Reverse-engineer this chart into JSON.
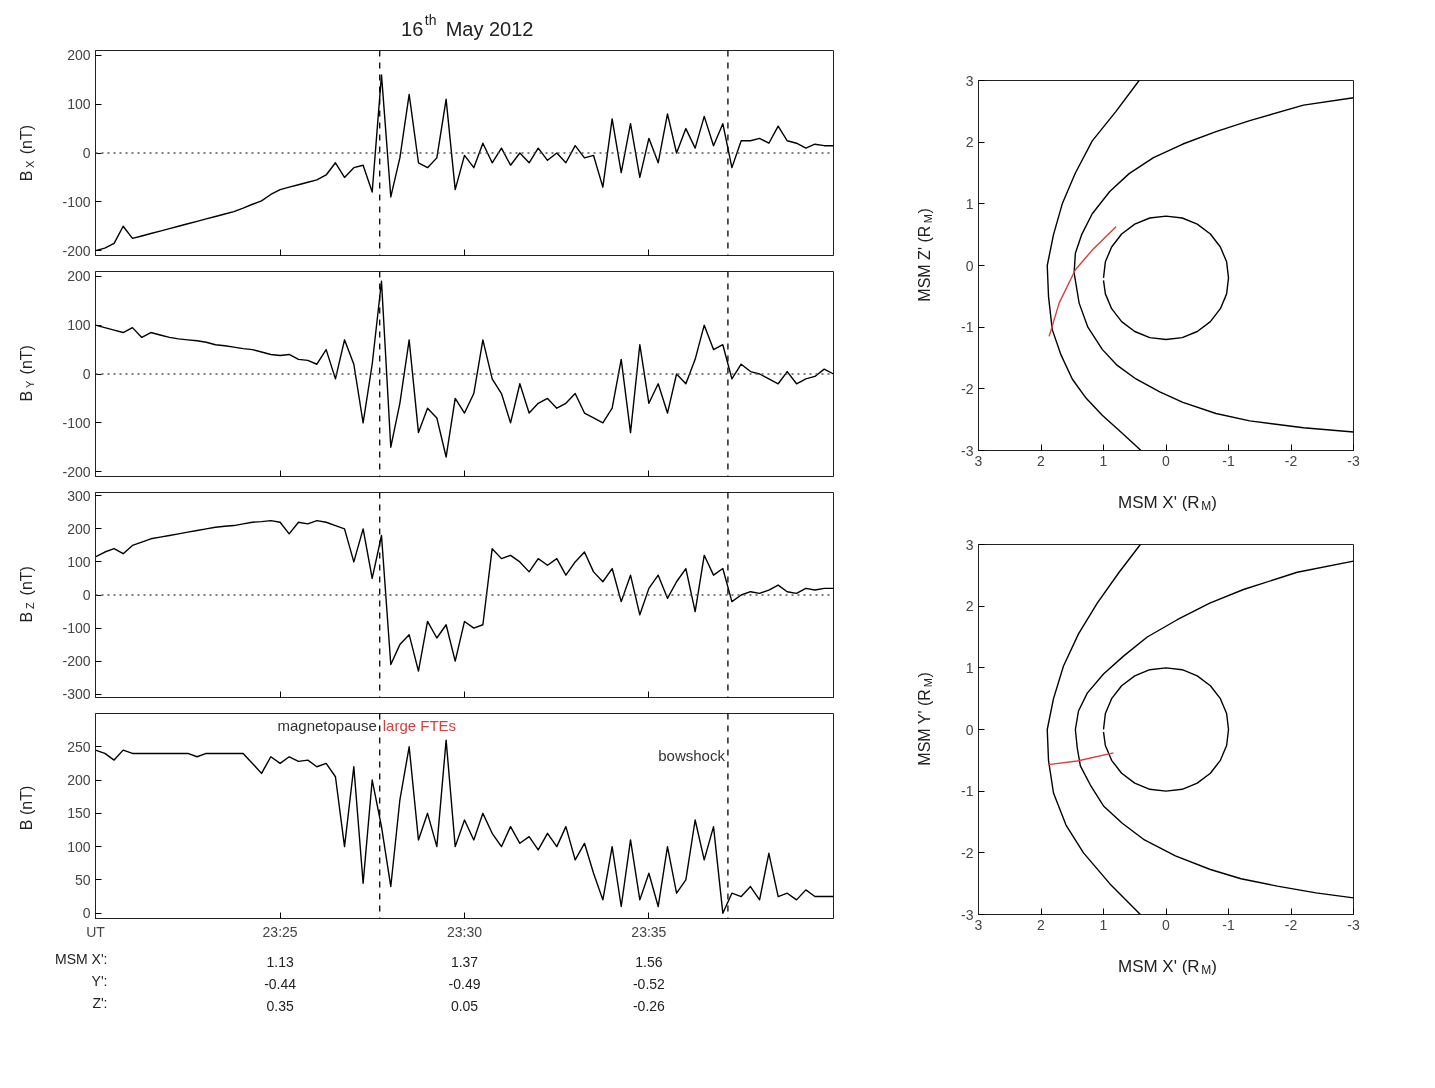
{
  "chart_data": [
    {
      "type": "line",
      "title": "16$^{th}$ May 2012",
      "ylabel": "B$_{X}$ (nT)",
      "x": [
        23.3333,
        23.3375,
        23.3417,
        23.3458,
        23.35,
        23.3542,
        23.3583,
        23.3625,
        23.3667,
        23.3708,
        23.375,
        23.3792,
        23.3833,
        23.3875,
        23.3917,
        23.3958,
        23.4,
        23.4042,
        23.4083,
        23.4125,
        23.4167,
        23.4208,
        23.425,
        23.4292,
        23.4333,
        23.4375,
        23.4417,
        23.4458,
        23.45,
        23.4542,
        23.4583,
        23.4625,
        23.4667,
        23.4708,
        23.475,
        23.4792,
        23.4833,
        23.4875,
        23.4917,
        23.4958,
        23.5,
        23.5042,
        23.5083,
        23.5125,
        23.5167,
        23.5208,
        23.525,
        23.5292,
        23.5333,
        23.5375,
        23.5417,
        23.5458,
        23.55,
        23.5542,
        23.5583,
        23.5625,
        23.5667,
        23.5708,
        23.575,
        23.5792,
        23.5833,
        23.5875,
        23.5917,
        23.5958,
        23.6,
        23.6042,
        23.6083,
        23.6125,
        23.6167,
        23.6208,
        23.625,
        23.6292,
        23.6333,
        23.6375,
        23.6417,
        23.6458,
        23.65,
        23.6542,
        23.6583,
        23.6625,
        23.6667
      ],
      "series": [
        {
          "color": "#000000",
          "values": [
            -200,
            -195,
            -185,
            -150,
            -175,
            -170,
            -165,
            -160,
            -155,
            -150,
            -145,
            -140,
            -135,
            -130,
            -125,
            -120,
            -113,
            -105,
            -98,
            -85,
            -75,
            -70,
            -65,
            -60,
            -55,
            -45,
            -20,
            -50,
            -30,
            -25,
            -80,
            160,
            -90,
            -10,
            120,
            -20,
            -30,
            -10,
            110,
            -75,
            -5,
            -30,
            20,
            -20,
            10,
            -25,
            0,
            -20,
            10,
            -15,
            0,
            -20,
            15,
            -10,
            -5,
            -70,
            70,
            -40,
            60,
            -50,
            30,
            -20,
            80,
            0,
            50,
            10,
            75,
            15,
            60,
            -30,
            25,
            25,
            30,
            20,
            55,
            25,
            20,
            10,
            18,
            15,
            15
          ]
        }
      ],
      "xlim": [
        23.3333,
        23.6667
      ],
      "ylim": [
        -210,
        210
      ],
      "xticks": [
        23.4167,
        23.5,
        23.5833
      ],
      "tick_labels": "y",
      "yticks": [
        -200,
        -100,
        0,
        100,
        200
      ],
      "ref_lines": [
        {
          "axis": "y",
          "value": 0,
          "line_style": "dotted",
          "color": "#555555"
        },
        {
          "axis": "x",
          "value": 23.4617,
          "line_style": "dashed",
          "color": "#000000"
        },
        {
          "axis": "x",
          "value": 23.619,
          "line_style": "dashed",
          "color": "#000000"
        }
      ]
    },
    {
      "type": "line",
      "ylabel": "B$_{Y}$ (nT)",
      "x": [
        23.3333,
        23.3375,
        23.3417,
        23.3458,
        23.35,
        23.3542,
        23.3583,
        23.3625,
        23.3667,
        23.3708,
        23.375,
        23.3792,
        23.3833,
        23.3875,
        23.3917,
        23.3958,
        23.4,
        23.4042,
        23.4083,
        23.4125,
        23.4167,
        23.4208,
        23.425,
        23.4292,
        23.4333,
        23.4375,
        23.4417,
        23.4458,
        23.45,
        23.4542,
        23.4583,
        23.4625,
        23.4667,
        23.4708,
        23.475,
        23.4792,
        23.4833,
        23.4875,
        23.4917,
        23.4958,
        23.5,
        23.5042,
        23.5083,
        23.5125,
        23.5167,
        23.5208,
        23.525,
        23.5292,
        23.5333,
        23.5375,
        23.5417,
        23.5458,
        23.55,
        23.5542,
        23.5583,
        23.5625,
        23.5667,
        23.5708,
        23.575,
        23.5792,
        23.5833,
        23.5875,
        23.5917,
        23.5958,
        23.6,
        23.6042,
        23.6083,
        23.6125,
        23.6167,
        23.6208,
        23.625,
        23.6292,
        23.6333,
        23.6375,
        23.6417,
        23.6458,
        23.65,
        23.6542,
        23.6583,
        23.6625,
        23.6667
      ],
      "series": [
        {
          "color": "#000000",
          "values": [
            100,
            95,
            90,
            85,
            95,
            75,
            85,
            80,
            75,
            72,
            70,
            68,
            65,
            60,
            58,
            55,
            52,
            50,
            45,
            40,
            38,
            40,
            30,
            28,
            20,
            50,
            -10,
            70,
            20,
            -100,
            20,
            190,
            -150,
            -60,
            70,
            -120,
            -70,
            -90,
            -170,
            -50,
            -80,
            -40,
            70,
            -10,
            -40,
            -100,
            -20,
            -80,
            -60,
            -50,
            -70,
            -60,
            -40,
            -80,
            -90,
            -100,
            -70,
            30,
            -120,
            60,
            -60,
            -20,
            -80,
            0,
            -20,
            30,
            100,
            50,
            60,
            -10,
            20,
            5,
            0,
            -10,
            -20,
            5,
            -20,
            -10,
            -5,
            10,
            0
          ]
        }
      ],
      "xlim": [
        23.3333,
        23.6667
      ],
      "ylim": [
        -210,
        210
      ],
      "xticks": [
        23.4167,
        23.5,
        23.5833
      ],
      "tick_labels": "y",
      "yticks": [
        -200,
        -100,
        0,
        100,
        200
      ],
      "ref_lines": [
        {
          "axis": "y",
          "value": 0,
          "line_style": "dotted",
          "color": "#555555"
        },
        {
          "axis": "x",
          "value": 23.4617,
          "line_style": "dashed",
          "color": "#000000"
        },
        {
          "axis": "x",
          "value": 23.619,
          "line_style": "dashed",
          "color": "#000000"
        }
      ]
    },
    {
      "type": "line",
      "ylabel": "B$_{Z}$ (nT)",
      "x": [
        23.3333,
        23.3375,
        23.3417,
        23.3458,
        23.35,
        23.3542,
        23.3583,
        23.3625,
        23.3667,
        23.3708,
        23.375,
        23.3792,
        23.3833,
        23.3875,
        23.3917,
        23.3958,
        23.4,
        23.4042,
        23.4083,
        23.4125,
        23.4167,
        23.4208,
        23.425,
        23.4292,
        23.4333,
        23.4375,
        23.4417,
        23.4458,
        23.45,
        23.4542,
        23.4583,
        23.4625,
        23.4667,
        23.4708,
        23.475,
        23.4792,
        23.4833,
        23.4875,
        23.4917,
        23.4958,
        23.5,
        23.5042,
        23.5083,
        23.5125,
        23.5167,
        23.5208,
        23.525,
        23.5292,
        23.5333,
        23.5375,
        23.5417,
        23.5458,
        23.55,
        23.5542,
        23.5583,
        23.5625,
        23.5667,
        23.5708,
        23.575,
        23.5792,
        23.5833,
        23.5875,
        23.5917,
        23.5958,
        23.6,
        23.6042,
        23.6083,
        23.6125,
        23.6167,
        23.6208,
        23.625,
        23.6292,
        23.6333,
        23.6375,
        23.6417,
        23.6458,
        23.65,
        23.6542,
        23.6583,
        23.6625,
        23.6667
      ],
      "series": [
        {
          "color": "#000000",
          "values": [
            115,
            130,
            140,
            125,
            150,
            160,
            170,
            175,
            180,
            185,
            190,
            195,
            200,
            205,
            208,
            210,
            215,
            220,
            222,
            225,
            220,
            185,
            220,
            215,
            225,
            220,
            210,
            200,
            100,
            200,
            50,
            180,
            -210,
            -150,
            -120,
            -230,
            -80,
            -130,
            -90,
            -200,
            -80,
            -100,
            -90,
            140,
            110,
            120,
            100,
            70,
            110,
            90,
            110,
            60,
            100,
            130,
            70,
            40,
            80,
            -20,
            60,
            -60,
            20,
            60,
            -10,
            40,
            80,
            -50,
            120,
            60,
            80,
            -20,
            0,
            10,
            5,
            15,
            30,
            10,
            5,
            20,
            15,
            20,
            20
          ]
        }
      ],
      "xlim": [
        23.3333,
        23.6667
      ],
      "ylim": [
        -310,
        310
      ],
      "xticks": [
        23.4167,
        23.5,
        23.5833
      ],
      "tick_labels": "y",
      "yticks": [
        -300,
        -200,
        -100,
        0,
        100,
        200,
        300
      ],
      "ref_lines": [
        {
          "axis": "y",
          "value": 0,
          "line_style": "dotted",
          "color": "#555555"
        },
        {
          "axis": "x",
          "value": 23.4617,
          "line_style": "dashed",
          "color": "#000000"
        },
        {
          "axis": "x",
          "value": 23.619,
          "line_style": "dashed",
          "color": "#000000"
        }
      ]
    },
    {
      "type": "line",
      "ylabel": "B (nT)",
      "x": [
        23.3333,
        23.3375,
        23.3417,
        23.3458,
        23.35,
        23.3542,
        23.3583,
        23.3625,
        23.3667,
        23.3708,
        23.375,
        23.3792,
        23.3833,
        23.3875,
        23.3917,
        23.3958,
        23.4,
        23.4042,
        23.4083,
        23.4125,
        23.4167,
        23.4208,
        23.425,
        23.4292,
        23.4333,
        23.4375,
        23.4417,
        23.4458,
        23.45,
        23.4542,
        23.4583,
        23.4625,
        23.4667,
        23.4708,
        23.475,
        23.4792,
        23.4833,
        23.4875,
        23.4917,
        23.4958,
        23.5,
        23.5042,
        23.5083,
        23.5125,
        23.5167,
        23.5208,
        23.525,
        23.5292,
        23.5333,
        23.5375,
        23.5417,
        23.5458,
        23.55,
        23.5542,
        23.5583,
        23.5625,
        23.5667,
        23.5708,
        23.575,
        23.5792,
        23.5833,
        23.5875,
        23.5917,
        23.5958,
        23.6,
        23.6042,
        23.6083,
        23.6125,
        23.6167,
        23.6208,
        23.625,
        23.6292,
        23.6333,
        23.6375,
        23.6417,
        23.6458,
        23.65,
        23.6542,
        23.6583,
        23.6625,
        23.6667
      ],
      "series": [
        {
          "color": "#000000",
          "values": [
            245,
            240,
            230,
            245,
            240,
            240,
            240,
            240,
            240,
            240,
            240,
            235,
            240,
            240,
            240,
            240,
            240,
            225,
            210,
            235,
            225,
            235,
            228,
            230,
            220,
            225,
            205,
            100,
            220,
            45,
            200,
            130,
            40,
            170,
            250,
            110,
            150,
            100,
            260,
            100,
            140,
            110,
            150,
            120,
            100,
            130,
            105,
            115,
            95,
            120,
            100,
            130,
            80,
            105,
            60,
            20,
            100,
            10,
            110,
            20,
            60,
            10,
            100,
            30,
            50,
            140,
            80,
            130,
            0,
            30,
            25,
            40,
            20,
            90,
            25,
            30,
            20,
            35,
            25,
            25,
            25
          ]
        }
      ],
      "xlim": [
        23.3333,
        23.6667
      ],
      "ylim": [
        -8,
        300
      ],
      "xticks": [
        {
          "value": 23.3333,
          "label": "UT"
        },
        {
          "value": 23.4167,
          "label": "23:25"
        },
        {
          "value": 23.5,
          "label": "23:30"
        },
        {
          "value": 23.5833,
          "label": "23:35"
        }
      ],
      "yticks": [
        0,
        50,
        100,
        150,
        200,
        250
      ],
      "ref_lines": [
        {
          "axis": "x",
          "value": 23.4617,
          "line_style": "dashed",
          "color": "#000000",
          "label": "magnetopause"
        },
        {
          "axis": "x",
          "value": 23.619,
          "line_style": "dashed",
          "color": "#000000",
          "label": "bowshock"
        }
      ],
      "annotations": [
        "large FTEs",
        "MSM X':",
        "1.13",
        "1.37",
        "1.56",
        "Y':",
        "-0.44",
        "-0.49",
        "-0.52",
        "Z':",
        "0.35",
        "0.05",
        "-0.26"
      ]
    },
    {
      "type": "line",
      "xlabel": "MSM X' (R$_{M}$)",
      "ylabel": "MSM Z' (R$_{M}$)",
      "series": [
        {
          "color": "#000000",
          "x": [
            0.43,
            0.8,
            1.18,
            1.45,
            1.66,
            1.8,
            1.9,
            1.88,
            1.82,
            1.68,
            1.5,
            1.28,
            1.02,
            0.7,
            0.4
          ],
          "values": [
            3,
            2.5,
            2.02,
            1.5,
            1.0,
            0.5,
            0,
            -0.5,
            -1.04,
            -1.45,
            -1.84,
            -2.15,
            -2.43,
            -2.72,
            -3
          ]
        },
        {
          "color": "#000000",
          "x": [
            -3,
            -2.2,
            -1.34,
            -0.8,
            -0.27,
            0.2,
            0.59,
            0.9,
            1.18,
            1.35,
            1.45,
            1.47,
            1.39,
            1.25,
            1.02,
            0.78,
            0.48,
            0.1,
            -0.27,
            -0.8,
            -1.34,
            -2.2,
            -3
          ],
          "values": [
            2.72,
            2.6,
            2.35,
            2.17,
            1.97,
            1.75,
            1.49,
            1.2,
            0.84,
            0.5,
            0.2,
            -0.12,
            -0.61,
            -1.0,
            -1.36,
            -1.62,
            -1.84,
            -2.05,
            -2.22,
            -2.4,
            -2.52,
            -2.63,
            -2.7
          ]
        },
        {
          "color": "#000000",
          "x": [
            1,
            0.97,
            0.87,
            0.71,
            0.5,
            0.26,
            0,
            -0.26,
            -0.5,
            -0.71,
            -0.87,
            -0.97,
            -1,
            -0.97,
            -0.87,
            -0.71,
            -0.5,
            -0.26,
            0,
            0.26,
            0.5,
            0.71,
            0.87,
            0.97,
            1
          ],
          "values": [
            -0.2,
            0.06,
            0.3,
            0.51,
            0.67,
            0.77,
            0.8,
            0.77,
            0.67,
            0.51,
            0.3,
            0.06,
            -0.2,
            -0.46,
            -0.7,
            -0.91,
            -1.07,
            -1.17,
            -1.2,
            -1.17,
            -1.07,
            -0.91,
            -0.7,
            -0.46,
            -0.24
          ]
        },
        {
          "color": "#e03c3c",
          "x": [
            1.87,
            1.71,
            1.45,
            1.18,
            0.8
          ],
          "values": [
            -1.15,
            -0.61,
            -0.07,
            0.25,
            0.63
          ]
        }
      ],
      "xlim": [
        3,
        -3
      ],
      "ylim": [
        -3,
        3
      ],
      "xticks": [
        3,
        2,
        1,
        0,
        -1,
        -2,
        -3
      ],
      "yticks": [
        -3,
        -2,
        -1,
        0,
        1,
        2,
        3
      ]
    },
    {
      "type": "line",
      "xlabel": "MSM X' (R$_{M}$)",
      "ylabel": "MSM Y' (R$_{M}$)",
      "series": [
        {
          "color": "#000000",
          "x": [
            0.41,
            0.75,
            1.1,
            1.4,
            1.64,
            1.8,
            1.9,
            1.88,
            1.8,
            1.6,
            1.32,
            0.9,
            0.41
          ],
          "values": [
            3,
            2.55,
            2.05,
            1.55,
            1.03,
            0.5,
            0,
            -0.5,
            -1.03,
            -1.55,
            -2.0,
            -2.5,
            -3
          ]
        },
        {
          "color": "#000000",
          "x": [
            -3,
            -2.1,
            -1.24,
            -0.7,
            -0.18,
            0.3,
            0.68,
            1.0,
            1.26,
            1.4,
            1.45,
            1.42,
            1.37,
            1.2,
            1.0,
            0.7,
            0.36,
            -0.15,
            -0.71,
            -1.2,
            -1.78,
            -2.4,
            -3
          ],
          "values": [
            2.73,
            2.55,
            2.27,
            2.05,
            1.78,
            1.5,
            1.19,
            0.9,
            0.59,
            0.3,
            0,
            -0.3,
            -0.59,
            -0.92,
            -1.24,
            -1.52,
            -1.78,
            -2.05,
            -2.27,
            -2.42,
            -2.54,
            -2.65,
            -2.73
          ]
        },
        {
          "color": "#000000",
          "x": [
            1,
            0.97,
            0.87,
            0.71,
            0.5,
            0.26,
            0,
            -0.26,
            -0.5,
            -0.71,
            -0.87,
            -0.97,
            -1,
            -0.97,
            -0.87,
            -0.71,
            -0.5,
            -0.26,
            0,
            0.26,
            0.5,
            0.71,
            0.87,
            0.97,
            1
          ],
          "values": [
            0,
            0.26,
            0.5,
            0.71,
            0.87,
            0.97,
            1,
            0.97,
            0.87,
            0.71,
            0.5,
            0.26,
            0,
            -0.26,
            -0.5,
            -0.71,
            -0.87,
            -0.97,
            -1,
            -0.97,
            -0.87,
            -0.71,
            -0.5,
            -0.26,
            -0.04
          ]
        },
        {
          "color": "#e03c3c",
          "x": [
            1.88,
            1.42,
            0.84
          ],
          "values": [
            -0.57,
            -0.51,
            -0.38
          ]
        }
      ],
      "xlim": [
        3,
        -3
      ],
      "ylim": [
        -3,
        3
      ],
      "xticks": [
        3,
        2,
        1,
        0,
        -1,
        -2,
        -3
      ],
      "yticks": [
        -3,
        -2,
        -1,
        0,
        1,
        2,
        3
      ]
    }
  ]
}
